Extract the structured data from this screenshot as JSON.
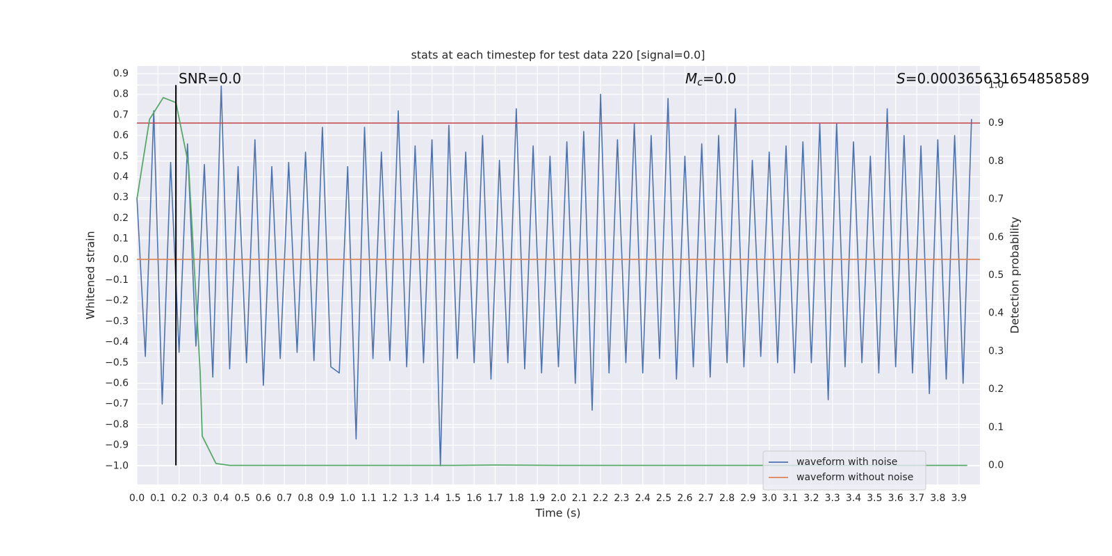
{
  "chart_data": {
    "type": "line",
    "title": "stats at each timestep for test data 220 [signal=0.0]",
    "x_label": "Time (s)",
    "y_label": "Whitened strain",
    "y2_label": "Detection probability",
    "grid": true,
    "legend_position": "lower right",
    "background": "#eaeaf2",
    "xlim": [
      0.0,
      4.0
    ],
    "ylim": [
      -1.09,
      0.937
    ],
    "y2lim": [
      -0.05,
      1.05
    ],
    "xticks": [
      {
        "value": 0.0,
        "label": "0.0"
      },
      0.1,
      0.2,
      0.3,
      0.4,
      0.5,
      0.6,
      0.7,
      0.8,
      0.9,
      {
        "value": 1.0,
        "label": "1.0"
      },
      1.1,
      1.2,
      1.3,
      1.4,
      1.5,
      1.6,
      1.7,
      1.8,
      1.9,
      {
        "value": 2.0,
        "label": "2.0"
      },
      2.1,
      2.2,
      2.3,
      2.4,
      2.5,
      2.6,
      2.7,
      2.8,
      2.9,
      {
        "value": 3.0,
        "label": "3.0"
      },
      3.1,
      3.2,
      3.3,
      3.4,
      3.5,
      3.6,
      3.7,
      3.8,
      3.9
    ],
    "yticks": [
      {
        "value": -1.0,
        "label": "−1.0"
      },
      {
        "value": -0.9,
        "label": "−0.9"
      },
      {
        "value": -0.8,
        "label": "−0.8"
      },
      {
        "value": -0.7,
        "label": "−0.7"
      },
      {
        "value": -0.6,
        "label": "−0.6"
      },
      {
        "value": -0.5,
        "label": "−0.5"
      },
      {
        "value": -0.4,
        "label": "−0.4"
      },
      {
        "value": -0.3,
        "label": "−0.3"
      },
      {
        "value": -0.2,
        "label": "−0.2"
      },
      {
        "value": -0.1,
        "label": "−0.1"
      },
      {
        "value": 0.0,
        "label": "0.0"
      },
      0.1,
      0.2,
      0.3,
      0.4,
      0.5,
      0.6,
      0.7,
      0.8,
      0.9
    ],
    "y2ticks": [
      {
        "value": 0.0,
        "label": "0.0"
      },
      0.1,
      0.2,
      0.3,
      0.4,
      0.5,
      0.6,
      0.7,
      0.8,
      0.9,
      {
        "value": 1.0,
        "label": "1.0"
      }
    ],
    "x": [
      0.0,
      0.04,
      0.08,
      0.12,
      0.16,
      0.2,
      0.24,
      0.28,
      0.32,
      0.36,
      0.4,
      0.44,
      0.48,
      0.52,
      0.56,
      0.6,
      0.64,
      0.68,
      0.72,
      0.76,
      0.8,
      0.84,
      0.88,
      0.92,
      0.96,
      1.0,
      1.04,
      1.08,
      1.12,
      1.16,
      1.2,
      1.24,
      1.28,
      1.32,
      1.36,
      1.4,
      1.44,
      1.48,
      1.52,
      1.56,
      1.6,
      1.64,
      1.68,
      1.72,
      1.76,
      1.8,
      1.84,
      1.88,
      1.92,
      1.96,
      2.0,
      2.04,
      2.08,
      2.12,
      2.16,
      2.2,
      2.24,
      2.28,
      2.32,
      2.36,
      2.4,
      2.44,
      2.48,
      2.52,
      2.56,
      2.6,
      2.64,
      2.68,
      2.72,
      2.76,
      2.8,
      2.84,
      2.88,
      2.92,
      2.96,
      3.0,
      3.04,
      3.08,
      3.12,
      3.16,
      3.2,
      3.24,
      3.28,
      3.32,
      3.36,
      3.4,
      3.44,
      3.48,
      3.52,
      3.56,
      3.6,
      3.64,
      3.68,
      3.72,
      3.76,
      3.8,
      3.84,
      3.88,
      3.92,
      3.96
    ],
    "series": [
      {
        "name": "waveform with noise",
        "color": "#4c72b0",
        "values": [
          0.3,
          -0.47,
          0.72,
          -0.7,
          0.47,
          -0.45,
          0.56,
          -0.42,
          0.46,
          -0.57,
          0.84,
          -0.53,
          0.45,
          -0.5,
          0.58,
          -0.61,
          0.45,
          -0.48,
          0.47,
          -0.45,
          0.52,
          -0.49,
          0.64,
          -0.52,
          -0.55,
          0.45,
          -0.87,
          0.64,
          -0.48,
          0.52,
          -0.49,
          0.72,
          -0.52,
          0.55,
          -0.5,
          0.58,
          -1.0,
          0.65,
          -0.48,
          0.52,
          -0.5,
          0.6,
          -0.58,
          0.48,
          -0.5,
          0.73,
          -0.53,
          0.55,
          -0.55,
          0.5,
          -0.52,
          0.57,
          -0.6,
          0.62,
          -0.73,
          0.8,
          -0.55,
          0.58,
          -0.5,
          0.66,
          -0.55,
          0.6,
          -0.48,
          0.78,
          -0.58,
          0.5,
          -0.52,
          0.56,
          -0.57,
          0.6,
          -0.5,
          0.73,
          -0.52,
          0.48,
          -0.47,
          0.52,
          -0.5,
          0.55,
          -0.55,
          0.57,
          -0.5,
          0.66,
          -0.68,
          0.66,
          -0.52,
          0.57,
          -0.5,
          0.5,
          -0.55,
          0.73,
          -0.52,
          0.6,
          -0.55,
          0.55,
          -0.65,
          0.58,
          -0.58,
          0.6,
          -0.6,
          0.68
        ]
      },
      {
        "name": "waveform without noise",
        "color": "#dd8452",
        "x": [
          0.0,
          4.0
        ],
        "values": [
          0.0,
          0.0
        ]
      },
      {
        "color": "#55a868",
        "axis": "y2",
        "x": [
          0.0,
          0.06,
          0.125,
          0.185,
          0.245,
          0.3,
          0.31,
          0.375,
          0.44,
          0.5,
          1.0,
          1.5,
          1.7,
          2.0,
          2.5,
          3.0,
          3.5,
          3.94
        ],
        "values": [
          0.7,
          0.91,
          0.967,
          0.954,
          0.79,
          0.246,
          0.077,
          0.005,
          0.0,
          0.0,
          0.0,
          0.0,
          0.001,
          0.0,
          0.0,
          0.0,
          0.0,
          0.0
        ]
      }
    ],
    "threshold": {
      "value": 0.9,
      "axis": "y2",
      "color": "#c44e52"
    },
    "marker_time": 0.185,
    "marker_span_y2": [
      0.0,
      1.0
    ],
    "marker_color": "#000000",
    "annotations": [
      {
        "text": "SNR=0.0"
      },
      {
        "symbol": "M",
        "subscript": "c",
        "text": "=0.0"
      },
      {
        "symbol": "S",
        "text": "=0.000365631654858589"
      }
    ]
  }
}
